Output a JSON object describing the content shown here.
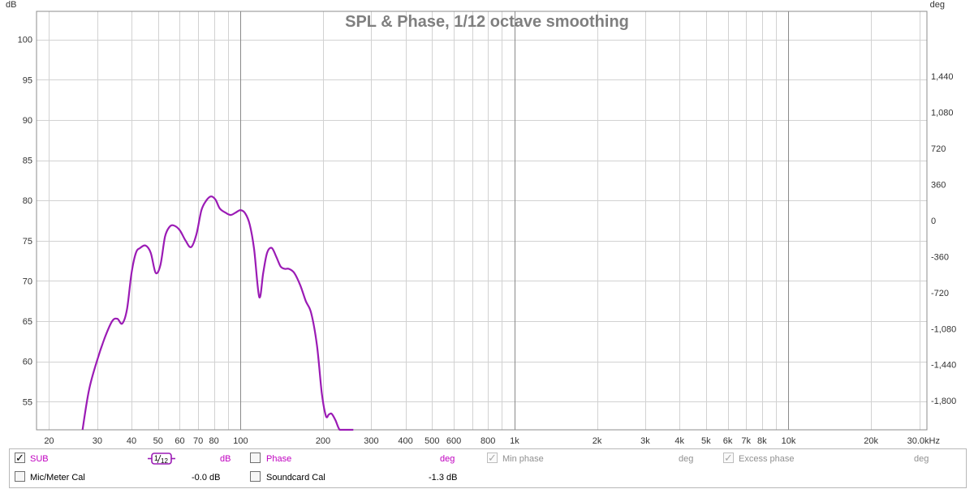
{
  "chart_data": {
    "type": "line",
    "title": "SPL & Phase, 1/12 octave smoothing",
    "x_scale": "log",
    "xlim": [
      18,
      32000
    ],
    "ylim": [
      51.5,
      103.5
    ],
    "y2lim": [
      -2090,
      2088
    ],
    "y_unit": "dB",
    "y2_unit": "deg",
    "grid": true,
    "x_ticks": [
      20,
      30,
      40,
      50,
      60,
      70,
      80,
      100,
      200,
      300,
      400,
      500,
      600,
      800,
      1000,
      2000,
      3000,
      4000,
      5000,
      6000,
      7000,
      8000,
      10000,
      20000,
      30000
    ],
    "x_tick_labels": [
      "20",
      "30",
      "40",
      "50",
      "60",
      "70",
      "80",
      "100",
      "200",
      "300",
      "400",
      "500",
      "600",
      "800",
      "1k",
      "2k",
      "3k",
      "4k",
      "5k",
      "6k",
      "7k",
      "8k",
      "10k",
      "20k",
      "30.0kHz"
    ],
    "x_minor": [
      90,
      700,
      900,
      9000
    ],
    "y_ticks": [
      55,
      60,
      65,
      70,
      75,
      80,
      85,
      90,
      95,
      100
    ],
    "y_tick_labels": [
      "55",
      "60",
      "65",
      "70",
      "75",
      "80",
      "85",
      "90",
      "95",
      "100"
    ],
    "y2_ticks": [
      -1800,
      -1440,
      -1080,
      -720,
      -360,
      0,
      360,
      720,
      1080,
      1440
    ],
    "y2_tick_labels": [
      "-1,800",
      "-1,440",
      "-1,080",
      "-720",
      "-360",
      "0",
      "360",
      "720",
      "1,080",
      "1,440"
    ],
    "series": [
      {
        "name": "SUB",
        "color": "#9b1bb5",
        "x": [
          26.5,
          28,
          30,
          32,
          34,
          35.5,
          37,
          38.5,
          40,
          41.5,
          43,
          45,
          47,
          49,
          51,
          53,
          55,
          57,
          60,
          63,
          66,
          69,
          72,
          75,
          78,
          81,
          84,
          88,
          92,
          96,
          100,
          104,
          108,
          112,
          117,
          121,
          125,
          130,
          135,
          140,
          145,
          150,
          157,
          165,
          173,
          181,
          190,
          198,
          205,
          210,
          215,
          222,
          230,
          240,
          251,
          258
        ],
        "y": [
          51.5,
          56.5,
          60.2,
          63,
          65,
          65.3,
          64.7,
          66.5,
          71,
          73.5,
          74.1,
          74.4,
          73.5,
          71,
          72,
          75.5,
          76.7,
          76.9,
          76.3,
          75,
          74.2,
          75.8,
          78.8,
          80,
          80.5,
          80.1,
          79,
          78.5,
          78.2,
          78.5,
          78.8,
          78.4,
          77,
          74,
          68,
          71,
          73.5,
          74.1,
          73,
          71.8,
          71.5,
          71.5,
          71,
          69.5,
          67.5,
          66,
          62,
          56,
          53.2,
          53.4,
          53.5,
          52.7,
          51.5,
          51.5,
          51.5,
          51.5
        ]
      }
    ]
  },
  "legend": {
    "row1": {
      "series_name": "SUB",
      "smoothing_num": "1",
      "smoothing_den": "12",
      "db_unit": "dB",
      "phase_label": "Phase",
      "phase_unit": "deg",
      "min_phase_label": "Min phase",
      "min_phase_unit": "deg",
      "excess_phase_label": "Excess phase",
      "excess_phase_unit": "deg"
    },
    "row2": {
      "mic_label": "Mic/Meter Cal",
      "mic_value": "-0.0 dB",
      "soundcard_label": "Soundcard Cal",
      "soundcard_value": "-1.3 dB"
    },
    "check_mark": "✓"
  }
}
